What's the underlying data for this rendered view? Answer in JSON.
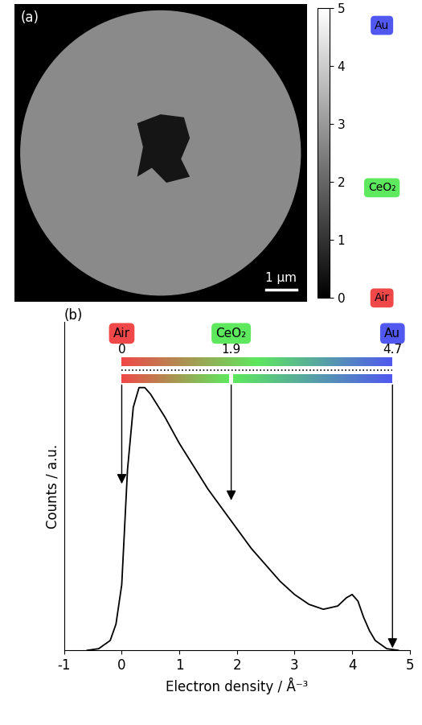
{
  "chart_data": [
    {
      "type": "image",
      "panel_label": "(a)",
      "field_of_view": 9.6,
      "scale_bar": {
        "length": 1,
        "label": "1 µm"
      },
      "colorbar": {
        "range": [
          0,
          5
        ],
        "ticks": [
          0,
          1,
          2,
          3,
          4,
          5
        ]
      },
      "phases": [
        {
          "name": "Au",
          "value": 4.7,
          "color": "#5058f0"
        },
        {
          "name": "CeO₂",
          "value": 1.9,
          "color": "#5ee85e"
        },
        {
          "name": "Air",
          "value": 0,
          "color": "#f04848"
        }
      ]
    },
    {
      "type": "line",
      "panel_label": "(b)",
      "xlabel": "Electron density / Å⁻³",
      "ylabel": "Counts / a.u.",
      "x": [
        -0.6,
        -0.4,
        -0.2,
        -0.1,
        0,
        0.1,
        0.2,
        0.3,
        0.4,
        0.5,
        0.75,
        1.0,
        1.25,
        1.5,
        1.75,
        2.0,
        2.25,
        2.5,
        2.75,
        3.0,
        3.25,
        3.5,
        3.75,
        3.9,
        4.0,
        4.1,
        4.2,
        4.3,
        4.4,
        4.6,
        4.8
      ],
      "values": [
        0,
        0.005,
        0.03,
        0.08,
        0.2,
        0.55,
        0.74,
        0.8,
        0.8,
        0.78,
        0.71,
        0.63,
        0.56,
        0.49,
        0.43,
        0.37,
        0.31,
        0.26,
        0.21,
        0.17,
        0.14,
        0.125,
        0.135,
        0.16,
        0.17,
        0.15,
        0.1,
        0.06,
        0.03,
        0.005,
        0
      ],
      "color": "#000000",
      "xlim": [
        -1,
        5
      ],
      "xticks": [
        -1,
        0,
        1,
        2,
        3,
        4,
        5
      ],
      "ylim": [
        0,
        1
      ],
      "yticks": [],
      "tick_labels": "x",
      "annotations": [
        {
          "label": "Air",
          "value": 0,
          "color": "#f04848"
        },
        {
          "label": "CeO₂",
          "value": 1.9,
          "color": "#5ee85e"
        },
        {
          "label": "Au",
          "value": 4.7,
          "color": "#5058f0"
        }
      ]
    }
  ]
}
